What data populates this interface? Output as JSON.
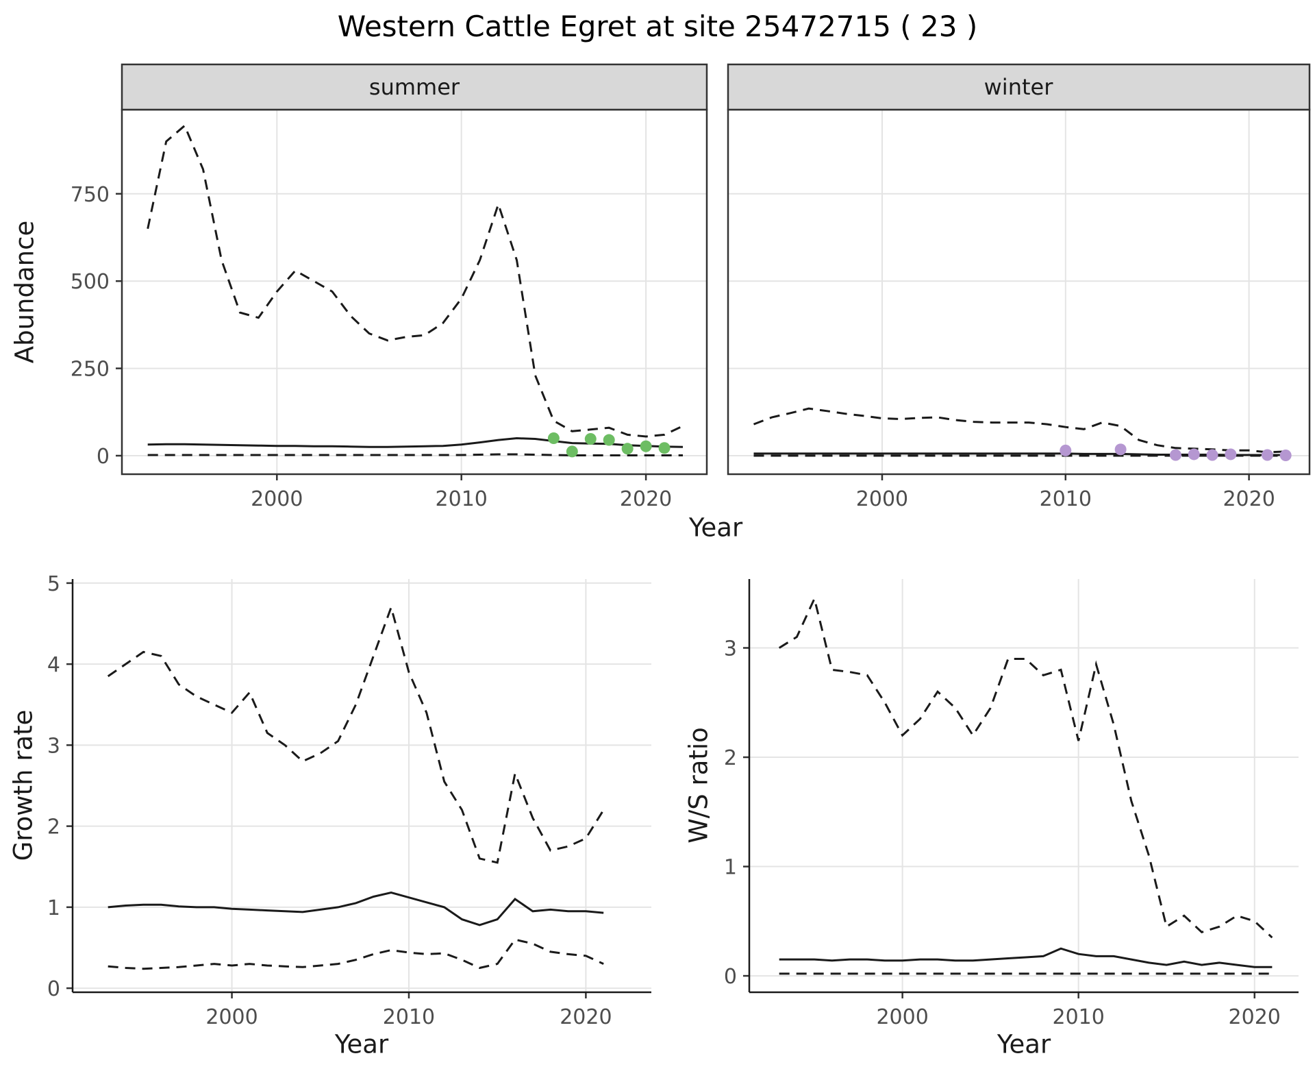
{
  "title": "Western Cattle Egret at site 25472715 ( 23 )",
  "colors": {
    "line": "#1a1a1a",
    "grid": "#e4e4e4",
    "strip_fill": "#d8d8d8",
    "panel_border": "#333333",
    "summer_points": "#6dbd63",
    "winter_points": "#b597d1"
  },
  "chart_data": [
    {
      "type": "line",
      "panel": "abundance-summer",
      "facet_label": "summer",
      "xlabel": "Year",
      "ylabel": "Abundance",
      "x_domain": [
        1991.6,
        2023.3
      ],
      "y_domain": [
        -53,
        991
      ],
      "x_ticks": [
        2000,
        2010,
        2020
      ],
      "y_ticks": [
        0,
        250,
        500,
        750
      ],
      "grid": true,
      "x": [
        1993,
        1994,
        1995,
        1996,
        1997,
        1998,
        1999,
        2000,
        2001,
        2002,
        2003,
        2004,
        2005,
        2006,
        2007,
        2008,
        2009,
        2010,
        2011,
        2012,
        2013,
        2014,
        2015,
        2016,
        2017,
        2018,
        2019,
        2020,
        2021,
        2022
      ],
      "series": [
        {
          "name": "upper-ci",
          "style": "dashed",
          "y": [
            650,
            900,
            945,
            820,
            560,
            410,
            395,
            470,
            530,
            500,
            470,
            400,
            350,
            330,
            340,
            345,
            380,
            450,
            560,
            720,
            560,
            230,
            100,
            70,
            75,
            80,
            60,
            55,
            60,
            85
          ]
        },
        {
          "name": "median",
          "style": "solid",
          "y": [
            32,
            33,
            33,
            32,
            31,
            30,
            29,
            28,
            28,
            27,
            27,
            26,
            25,
            25,
            26,
            27,
            28,
            32,
            38,
            45,
            50,
            48,
            42,
            36,
            35,
            34,
            30,
            28,
            26,
            25
          ]
        },
        {
          "name": "lower-ci",
          "style": "dashed",
          "y": [
            2,
            2,
            2,
            2,
            2,
            2,
            2,
            2,
            2,
            2,
            2,
            2,
            2,
            2,
            2,
            2,
            2,
            2,
            3,
            4,
            4,
            3,
            2,
            1,
            1,
            1,
            1,
            1,
            1,
            1
          ]
        },
        {
          "name": "observed",
          "style": "points",
          "color": "#6dbd63",
          "x": [
            2015,
            2016,
            2017,
            2018,
            2019,
            2020,
            2021
          ],
          "y": [
            50,
            12,
            48,
            45,
            20,
            27,
            22
          ]
        }
      ]
    },
    {
      "type": "line",
      "panel": "abundance-winter",
      "facet_label": "winter",
      "xlabel": "Year",
      "ylabel": "Abundance",
      "x_domain": [
        1991.6,
        2023.3
      ],
      "y_domain": [
        -53,
        991
      ],
      "x_ticks": [
        2000,
        2010,
        2020
      ],
      "y_ticks": [
        0,
        250,
        500,
        750
      ],
      "grid": true,
      "x": [
        1993,
        1994,
        1995,
        1996,
        1997,
        1998,
        1999,
        2000,
        2001,
        2002,
        2003,
        2004,
        2005,
        2006,
        2007,
        2008,
        2009,
        2010,
        2011,
        2012,
        2013,
        2014,
        2015,
        2016,
        2017,
        2018,
        2019,
        2020,
        2021,
        2022
      ],
      "series": [
        {
          "name": "upper-ci",
          "style": "dashed",
          "y": [
            90,
            110,
            122,
            135,
            128,
            120,
            114,
            107,
            105,
            108,
            110,
            102,
            97,
            95,
            95,
            95,
            90,
            82,
            76,
            95,
            85,
            45,
            30,
            22,
            20,
            18,
            15,
            15,
            10,
            12
          ]
        },
        {
          "name": "median",
          "style": "solid",
          "y": [
            6,
            6,
            6,
            6,
            6,
            6,
            6,
            6,
            6,
            6,
            6,
            6,
            6,
            6,
            6,
            6,
            6,
            6,
            5,
            5,
            5,
            4,
            3,
            3,
            3,
            3,
            2,
            2,
            2,
            2
          ]
        },
        {
          "name": "lower-ci",
          "style": "dashed",
          "y": [
            0,
            0,
            0,
            0,
            0,
            0,
            0,
            0,
            0,
            0,
            0,
            0,
            0,
            0,
            0,
            0,
            0,
            0,
            0,
            0,
            0,
            0,
            0,
            0,
            0,
            0,
            0,
            0,
            0,
            0
          ]
        },
        {
          "name": "observed",
          "style": "points",
          "color": "#b597d1",
          "x": [
            2010,
            2013,
            2016,
            2017,
            2018,
            2019,
            2021,
            2022
          ],
          "y": [
            15,
            18,
            2,
            4,
            2,
            4,
            2,
            1
          ]
        }
      ]
    },
    {
      "type": "line",
      "panel": "growth-rate",
      "facet_label": "",
      "xlabel": "Year",
      "ylabel": "Growth rate",
      "x_domain": [
        1991.0,
        2023.7
      ],
      "y_domain": [
        -0.05,
        5.05
      ],
      "x_ticks": [
        2000,
        2010,
        2020
      ],
      "y_ticks": [
        0,
        1,
        2,
        3,
        4,
        5
      ],
      "grid": true,
      "x": [
        1993,
        1994,
        1995,
        1996,
        1997,
        1998,
        1999,
        2000,
        2001,
        2002,
        2003,
        2004,
        2005,
        2006,
        2007,
        2008,
        2009,
        2010,
        2011,
        2012,
        2013,
        2014,
        2015,
        2016,
        2017,
        2018,
        2019,
        2020,
        2021
      ],
      "series": [
        {
          "name": "upper-ci",
          "style": "dashed",
          "y": [
            3.85,
            4.0,
            4.15,
            4.1,
            3.75,
            3.6,
            3.5,
            3.4,
            3.65,
            3.15,
            3.0,
            2.8,
            2.9,
            3.05,
            3.5,
            4.1,
            4.7,
            3.9,
            3.4,
            2.55,
            2.2,
            1.6,
            1.55,
            2.65,
            2.1,
            1.7,
            1.75,
            1.85,
            2.2
          ]
        },
        {
          "name": "median",
          "style": "solid",
          "y": [
            1.0,
            1.02,
            1.03,
            1.03,
            1.01,
            1.0,
            1.0,
            0.98,
            0.97,
            0.96,
            0.95,
            0.94,
            0.97,
            1.0,
            1.05,
            1.13,
            1.18,
            1.12,
            1.06,
            1.0,
            0.85,
            0.78,
            0.85,
            1.1,
            0.95,
            0.97,
            0.95,
            0.95,
            0.93
          ]
        },
        {
          "name": "lower-ci",
          "style": "dashed",
          "y": [
            0.27,
            0.25,
            0.24,
            0.25,
            0.26,
            0.28,
            0.3,
            0.28,
            0.3,
            0.28,
            0.27,
            0.26,
            0.28,
            0.3,
            0.35,
            0.42,
            0.47,
            0.44,
            0.42,
            0.43,
            0.35,
            0.25,
            0.3,
            0.6,
            0.55,
            0.45,
            0.42,
            0.4,
            0.3
          ]
        }
      ]
    },
    {
      "type": "line",
      "panel": "ws-ratio",
      "facet_label": "",
      "xlabel": "Year",
      "ylabel": "W/S ratio",
      "x_domain": [
        1991.3,
        2022.5
      ],
      "y_domain": [
        -0.15,
        3.63
      ],
      "x_ticks": [
        2000,
        2010,
        2020
      ],
      "y_ticks": [
        0,
        1,
        2,
        3
      ],
      "grid": true,
      "x": [
        1993,
        1994,
        1995,
        1996,
        1997,
        1998,
        1999,
        2000,
        2001,
        2002,
        2003,
        2004,
        2005,
        2006,
        2007,
        2008,
        2009,
        2010,
        2011,
        2012,
        2013,
        2014,
        2015,
        2016,
        2017,
        2018,
        2019,
        2020,
        2021
      ],
      "series": [
        {
          "name": "upper-ci",
          "style": "dashed",
          "y": [
            3.0,
            3.1,
            3.45,
            2.8,
            2.78,
            2.75,
            2.5,
            2.2,
            2.35,
            2.6,
            2.45,
            2.2,
            2.45,
            2.9,
            2.9,
            2.75,
            2.8,
            2.15,
            2.85,
            2.3,
            1.6,
            1.1,
            0.45,
            0.55,
            0.4,
            0.45,
            0.55,
            0.5,
            0.35
          ]
        },
        {
          "name": "median",
          "style": "solid",
          "y": [
            0.15,
            0.15,
            0.15,
            0.14,
            0.15,
            0.15,
            0.14,
            0.14,
            0.15,
            0.15,
            0.14,
            0.14,
            0.15,
            0.16,
            0.17,
            0.18,
            0.25,
            0.2,
            0.18,
            0.18,
            0.15,
            0.12,
            0.1,
            0.13,
            0.1,
            0.12,
            0.1,
            0.08,
            0.08
          ]
        },
        {
          "name": "lower-ci",
          "style": "dashed",
          "y": [
            0.02,
            0.02,
            0.02,
            0.02,
            0.02,
            0.02,
            0.02,
            0.02,
            0.02,
            0.02,
            0.02,
            0.02,
            0.02,
            0.02,
            0.02,
            0.02,
            0.02,
            0.02,
            0.02,
            0.02,
            0.02,
            0.02,
            0.02,
            0.02,
            0.02,
            0.02,
            0.02,
            0.02,
            0.02
          ]
        }
      ]
    }
  ]
}
